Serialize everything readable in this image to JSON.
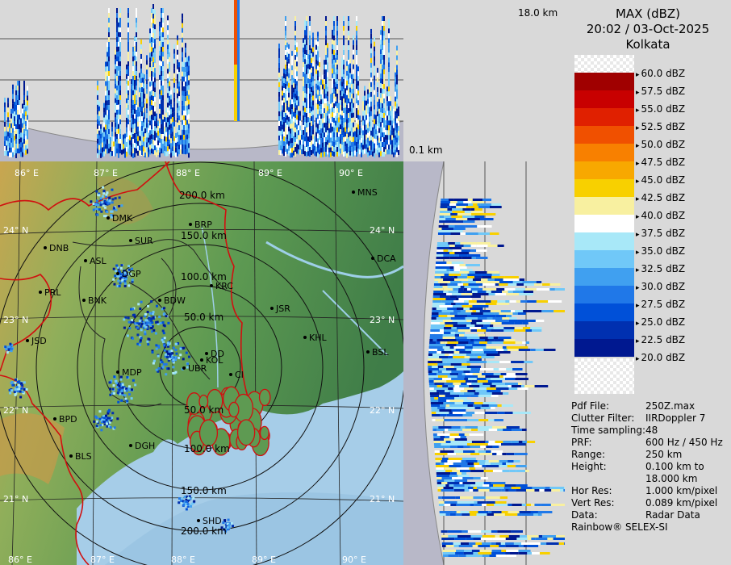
{
  "header": {
    "title": "MAX (dBZ)",
    "datetime": "20:02 / 03-Oct-2025",
    "station": "Kolkata"
  },
  "top_panel": {
    "height_top": "18.0 km",
    "height_bottom": "0.1 km"
  },
  "legend": [
    {
      "label": "60.0 dBZ",
      "color": "#f2f2f2"
    },
    {
      "label": "57.5 dBZ",
      "color": "#a00000"
    },
    {
      "label": "55.0 dBZ",
      "color": "#c80000"
    },
    {
      "label": "52.5 dBZ",
      "color": "#e02000"
    },
    {
      "label": "50.0 dBZ",
      "color": "#f05000"
    },
    {
      "label": "47.5 dBZ",
      "color": "#f88000"
    },
    {
      "label": "45.0 dBZ",
      "color": "#f8a800"
    },
    {
      "label": "42.5 dBZ",
      "color": "#f8d000"
    },
    {
      "label": "40.0 dBZ",
      "color": "#f8f0a0"
    },
    {
      "label": "37.5 dBZ",
      "color": "#ffffff"
    },
    {
      "label": "35.0 dBZ",
      "color": "#a8e8f8"
    },
    {
      "label": "32.5 dBZ",
      "color": "#70c8f8"
    },
    {
      "label": "30.0 dBZ",
      "color": "#40a0f0"
    },
    {
      "label": "27.5 dBZ",
      "color": "#2078e8"
    },
    {
      "label": "25.0 dBZ",
      "color": "#0050d8"
    },
    {
      "label": "22.5 dBZ",
      "color": "#0030b0"
    },
    {
      "label": "20.0 dBZ",
      "color": "#001890"
    }
  ],
  "info": [
    {
      "key": "Pdf File:",
      "value": "250Z.max"
    },
    {
      "key": "Clutter Filter:",
      "value": "IIRDoppler 7"
    },
    {
      "key": "Time sampling:",
      "value": "48"
    },
    {
      "key": "PRF:",
      "value": "600 Hz / 450 Hz"
    },
    {
      "key": "Range:",
      "value": "250 km"
    },
    {
      "key": "Height:",
      "value": "0.100 km to"
    },
    {
      "key": "",
      "value": "18.000 km"
    },
    {
      "key": "Hor Res:",
      "value": "1.000 km/pixel"
    },
    {
      "key": "Vert Res:",
      "value": "0.089 km/pixel"
    },
    {
      "key": "Data:",
      "value": "Radar Data"
    },
    {
      "key": "Rainbow® SELEX-SI",
      "value": ""
    }
  ],
  "map": {
    "lon_labels_top": [
      "86° E",
      "87° E",
      "88° E",
      "89° E",
      "90° E"
    ],
    "lon_labels_bottom": [
      "86° E",
      "87° E",
      "88° E",
      "89° E",
      "90° E"
    ],
    "lat_labels_left": [
      "24° N",
      "23° N",
      "22° N",
      "21° N"
    ],
    "lat_labels_right": [
      "24° N",
      "23° N",
      "22° N",
      "21° N"
    ],
    "ranges_north": [
      "50.0 km",
      "100.0 km",
      "150.0 km",
      "200.0 km"
    ],
    "ranges_south": [
      "50.0 km",
      "100.0 km",
      "150.0 km",
      "200.0 km"
    ],
    "cities": [
      "DMK",
      "SUR",
      "BRP",
      "DNB",
      "ASL",
      "DGP",
      "KRC",
      "PRL",
      "BNK",
      "BDW",
      "JSR",
      "JSD",
      "KHL",
      "DD",
      "KOL",
      "UBR",
      "CI",
      "MDP",
      "BPD",
      "DGH",
      "BLS",
      "SHD",
      "MNS",
      "DCA",
      "BSL"
    ],
    "radar_label": "KOL"
  }
}
